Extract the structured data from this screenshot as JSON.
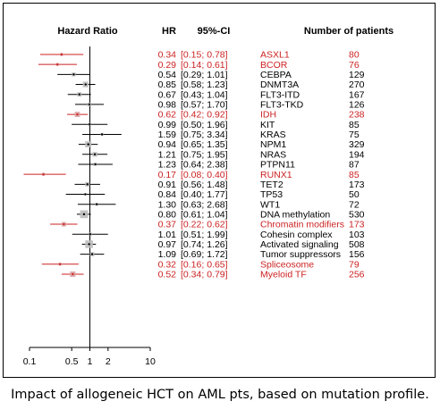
{
  "chart_data": {
    "type": "forest",
    "header": {
      "axis_label": "Hazard Ratio",
      "hr": "HR",
      "ci": "95%-CI",
      "patients": "Number of patients"
    },
    "x_scale": "log",
    "xlim": [
      0.1,
      10
    ],
    "reference_line": 1,
    "x_ticks": [
      "0.1",
      "0.5",
      "1",
      "2",
      "10"
    ],
    "x_tick_values": [
      0.1,
      0.5,
      1,
      2,
      10
    ],
    "colors": {
      "significant": "#cc2222",
      "normal": "#000000"
    },
    "rows": [
      {
        "label": "ASXL1",
        "hr": 0.34,
        "lo": 0.15,
        "hi": 0.78,
        "hr_text": "0.34",
        "ci_text": "[0.15; 0.78]",
        "n": "80",
        "significant": true
      },
      {
        "label": "BCOR",
        "hr": 0.29,
        "lo": 0.14,
        "hi": 0.61,
        "hr_text": "0.29",
        "ci_text": "[0.14; 0.61]",
        "n": "76",
        "significant": true
      },
      {
        "label": "CEBPA",
        "hr": 0.54,
        "lo": 0.29,
        "hi": 1.01,
        "hr_text": "0.54",
        "ci_text": "[0.29; 1.01]",
        "n": "129",
        "significant": false
      },
      {
        "label": "DNMT3A",
        "hr": 0.85,
        "lo": 0.58,
        "hi": 1.23,
        "hr_text": "0.85",
        "ci_text": "[0.58; 1.23]",
        "n": "270",
        "significant": false
      },
      {
        "label": "FLT3-ITD",
        "hr": 0.67,
        "lo": 0.43,
        "hi": 1.04,
        "hr_text": "0.67",
        "ci_text": "[0.43; 1.04]",
        "n": "167",
        "significant": false
      },
      {
        "label": "FLT3-TKD",
        "hr": 0.98,
        "lo": 0.57,
        "hi": 1.7,
        "hr_text": "0.98",
        "ci_text": "[0.57; 1.70]",
        "n": "126",
        "significant": false
      },
      {
        "label": "IDH",
        "hr": 0.62,
        "lo": 0.42,
        "hi": 0.92,
        "hr_text": "0.62",
        "ci_text": "[0.42; 0.92]",
        "n": "238",
        "significant": true
      },
      {
        "label": "KIT",
        "hr": 0.99,
        "lo": 0.5,
        "hi": 1.96,
        "hr_text": "0.99",
        "ci_text": "[0.50; 1.96]",
        "n": "85",
        "significant": false
      },
      {
        "label": "KRAS",
        "hr": 1.59,
        "lo": 0.75,
        "hi": 3.34,
        "hr_text": "1.59",
        "ci_text": "[0.75; 3.34]",
        "n": "75",
        "significant": false
      },
      {
        "label": "NPM1",
        "hr": 0.94,
        "lo": 0.65,
        "hi": 1.35,
        "hr_text": "0.94",
        "ci_text": "[0.65; 1.35]",
        "n": "329",
        "significant": false
      },
      {
        "label": "NRAS",
        "hr": 1.21,
        "lo": 0.75,
        "hi": 1.95,
        "hr_text": "1.21",
        "ci_text": "[0.75; 1.95]",
        "n": "194",
        "significant": false
      },
      {
        "label": "PTPN11",
        "hr": 1.23,
        "lo": 0.64,
        "hi": 2.38,
        "hr_text": "1.23",
        "ci_text": "[0.64; 2.38]",
        "n": "87",
        "significant": false
      },
      {
        "label": "RUNX1",
        "hr": 0.17,
        "lo": 0.08,
        "hi": 0.4,
        "hr_text": "0.17",
        "ci_text": "[0.08; 0.40]",
        "n": "85",
        "significant": true
      },
      {
        "label": "TET2",
        "hr": 0.91,
        "lo": 0.56,
        "hi": 1.48,
        "hr_text": "0.91",
        "ci_text": "[0.56; 1.48]",
        "n": "173",
        "significant": false
      },
      {
        "label": "TP53",
        "hr": 0.84,
        "lo": 0.4,
        "hi": 1.77,
        "hr_text": "0.84",
        "ci_text": "[0.40; 1.77]",
        "n": "50",
        "significant": false
      },
      {
        "label": "WT1",
        "hr": 1.3,
        "lo": 0.63,
        "hi": 2.68,
        "hr_text": "1.30",
        "ci_text": "[0.63; 2.68]",
        "n": "72",
        "significant": false
      },
      {
        "label": "DNA methylation",
        "hr": 0.8,
        "lo": 0.61,
        "hi": 1.04,
        "hr_text": "0.80",
        "ci_text": "[0.61; 1.04]",
        "n": "530",
        "significant": false
      },
      {
        "label": "Chromatin modifiers",
        "hr": 0.37,
        "lo": 0.22,
        "hi": 0.62,
        "hr_text": "0.37",
        "ci_text": "[0.22; 0.62]",
        "n": "173",
        "significant": true
      },
      {
        "label": "Cohesin complex",
        "hr": 1.01,
        "lo": 0.51,
        "hi": 1.99,
        "hr_text": "1.01",
        "ci_text": "[0.51; 1.99]",
        "n": "103",
        "significant": false
      },
      {
        "label": "Activated signaling",
        "hr": 0.97,
        "lo": 0.74,
        "hi": 1.26,
        "hr_text": "0.97",
        "ci_text": "[0.74; 1.26]",
        "n": "508",
        "significant": false
      },
      {
        "label": "Tumor suppressors",
        "hr": 1.09,
        "lo": 0.69,
        "hi": 1.72,
        "hr_text": "1.09",
        "ci_text": "[0.69; 1.72]",
        "n": "156",
        "significant": false
      },
      {
        "label": "Spliceosome",
        "hr": 0.32,
        "lo": 0.16,
        "hi": 0.65,
        "hr_text": "0.32",
        "ci_text": "[0.16; 0.65]",
        "n": "79",
        "significant": true
      },
      {
        "label": "Myeloid TF",
        "hr": 0.52,
        "lo": 0.34,
        "hi": 0.79,
        "hr_text": "0.52",
        "ci_text": "[0.34; 0.79]",
        "n": "256",
        "significant": true
      }
    ]
  },
  "caption": "Impact of allogeneic HCT on AML pts, based on mutation profile."
}
